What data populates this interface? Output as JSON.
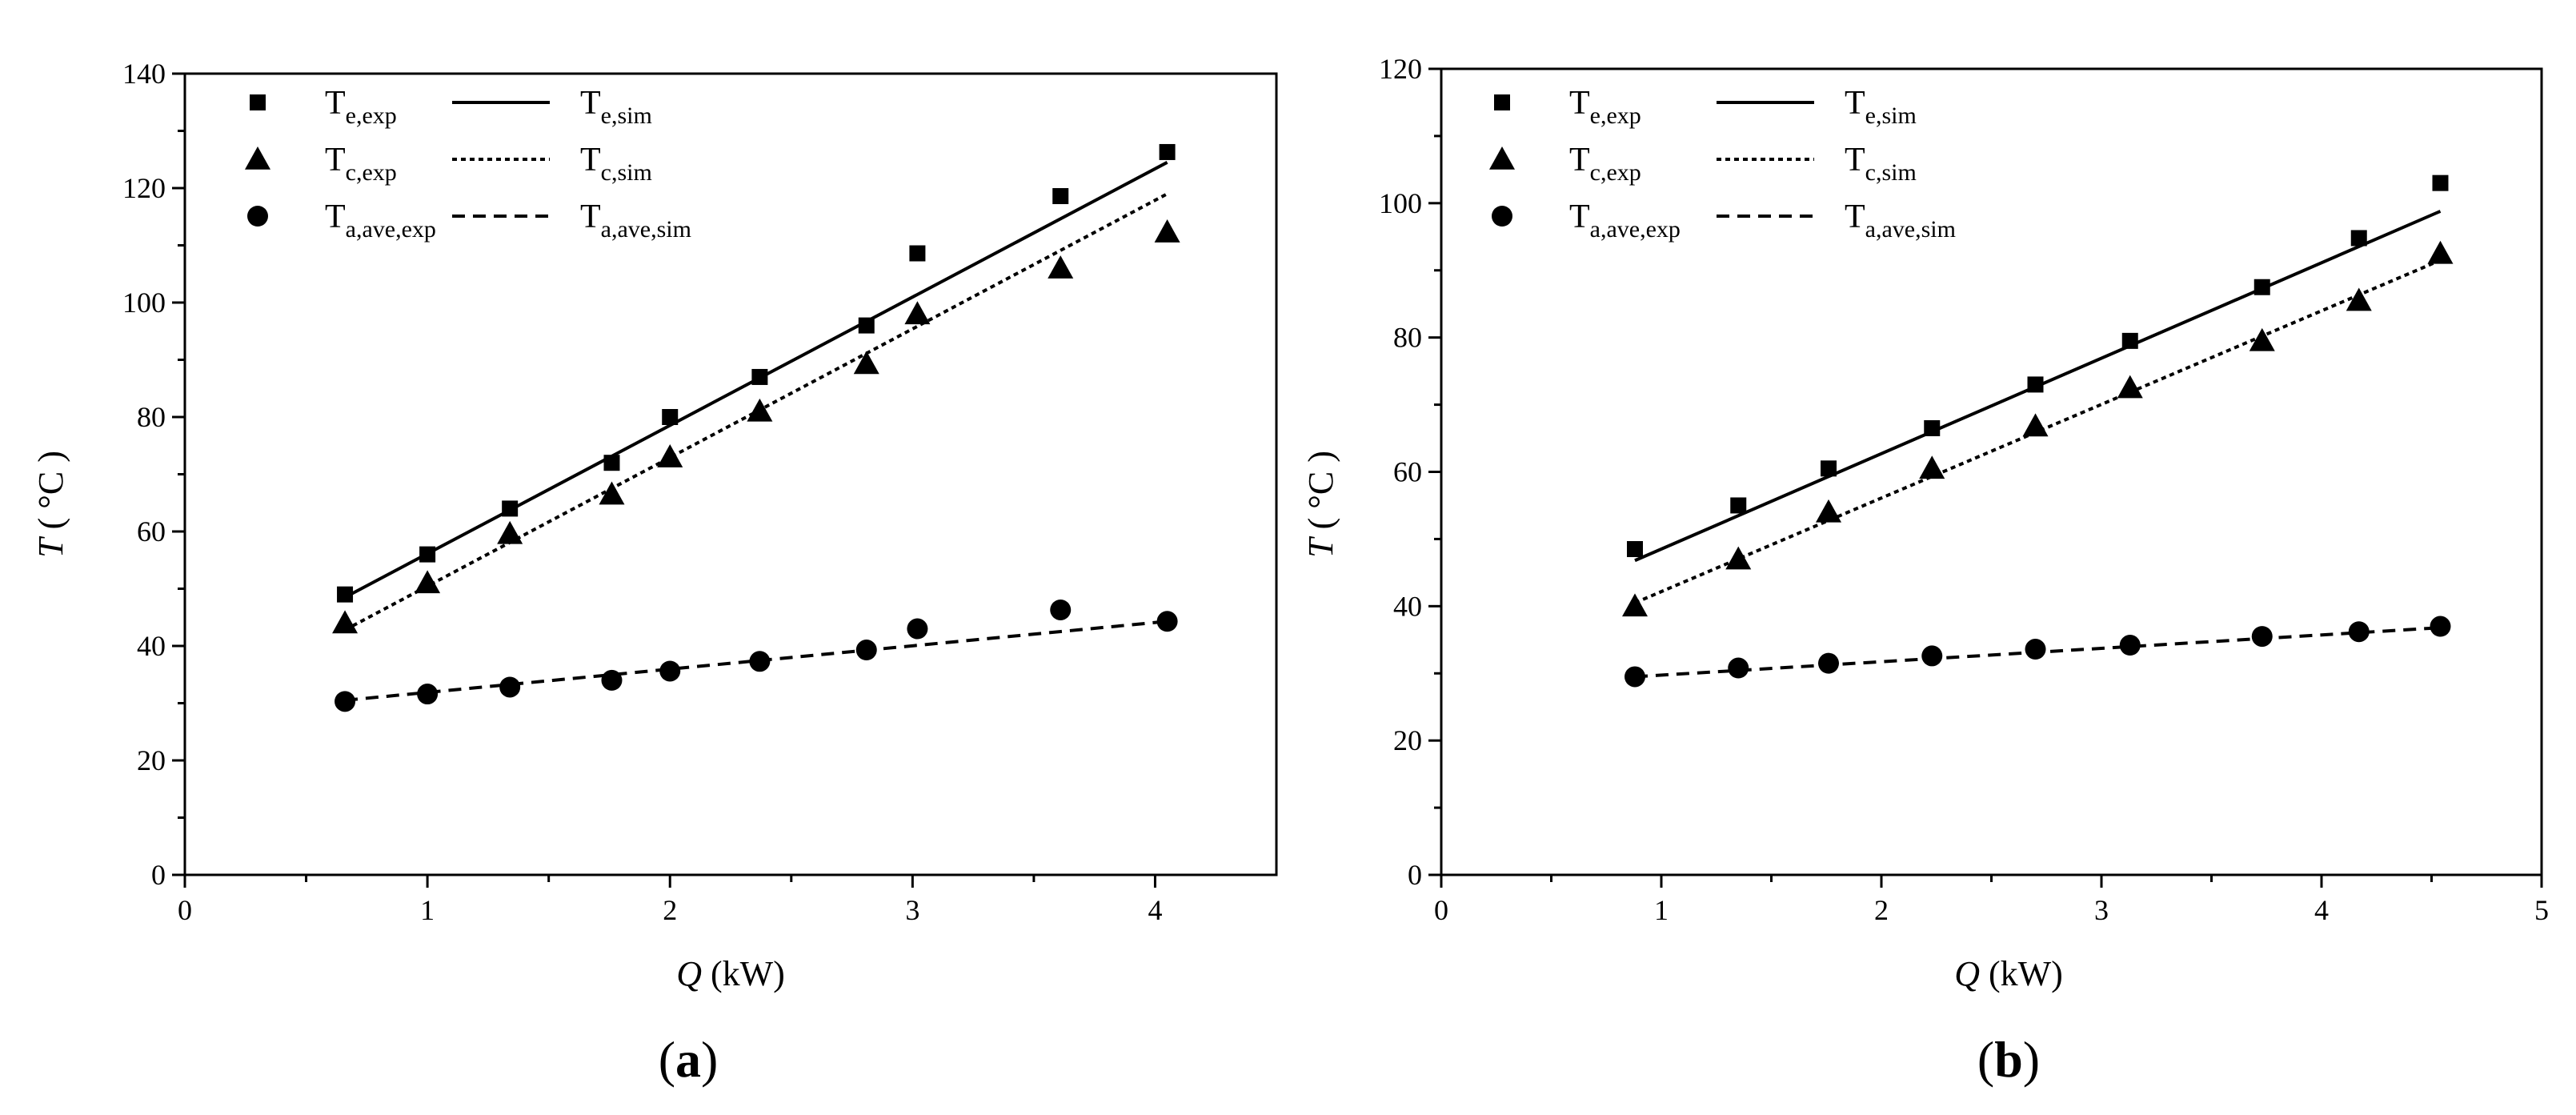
{
  "chart_data": [
    {
      "type": "scatter",
      "panel_label": "a",
      "xlabel": {
        "var": "Q",
        "unit": " (kW)"
      },
      "ylabel": {
        "var": "T",
        "unit": " ( °C )"
      },
      "xlim": [
        0,
        4.5
      ],
      "ylim": [
        0,
        140
      ],
      "xticks": [
        0,
        1,
        2,
        3,
        4
      ],
      "xticks_minor": [
        0.5,
        1.5,
        2.5,
        3.5
      ],
      "yticks": [
        0,
        20,
        40,
        60,
        80,
        100,
        120,
        140
      ],
      "yticks_minor": [
        10,
        30,
        50,
        70,
        90,
        110,
        130
      ],
      "legend": [
        {
          "base": "T",
          "sub": "e,exp",
          "kind": "marker",
          "marker": "square"
        },
        {
          "base": "T",
          "sub": "e,sim",
          "kind": "line",
          "dash": "solid"
        },
        {
          "base": "T",
          "sub": "c,exp",
          "kind": "marker",
          "marker": "triangle"
        },
        {
          "base": "T",
          "sub": "c,sim",
          "kind": "line",
          "dash": "dotted"
        },
        {
          "base": "T",
          "sub": "a,ave,exp",
          "kind": "marker",
          "marker": "circle"
        },
        {
          "base": "T",
          "sub": "a,ave,sim",
          "kind": "line",
          "dash": "dashed"
        }
      ],
      "series": [
        {
          "name": "T_e,exp",
          "marker": "square",
          "x": [
            0.66,
            1.0,
            1.34,
            1.76,
            2.0,
            2.37,
            2.81,
            3.02,
            3.61,
            4.05
          ],
          "y": [
            49.0,
            56.0,
            64.0,
            72.0,
            80.0,
            87.0,
            96.0,
            108.6,
            118.6,
            126.3
          ]
        },
        {
          "name": "T_c,exp",
          "marker": "triangle",
          "x": [
            0.66,
            1.0,
            1.34,
            1.76,
            2.0,
            2.37,
            2.81,
            3.02,
            3.61,
            4.05
          ],
          "y": [
            44.0,
            51.0,
            59.6,
            66.5,
            73.0,
            81.0,
            89.3,
            98.0,
            106.0,
            112.3
          ]
        },
        {
          "name": "T_a,ave,exp",
          "marker": "circle",
          "x": [
            0.66,
            1.0,
            1.34,
            1.76,
            2.0,
            2.37,
            2.81,
            3.02,
            3.61,
            4.05
          ],
          "y": [
            30.3,
            31.6,
            32.8,
            34.0,
            35.6,
            37.3,
            39.3,
            43.0,
            46.3,
            44.3
          ]
        },
        {
          "name": "T_e,sim",
          "line": "solid",
          "x": [
            0.66,
            4.05
          ],
          "y": [
            48.5,
            124.5
          ]
        },
        {
          "name": "T_c,sim",
          "line": "dotted",
          "x": [
            0.66,
            4.05
          ],
          "y": [
            42.8,
            119.0
          ]
        },
        {
          "name": "T_a,ave,sim",
          "line": "dashed",
          "x": [
            0.66,
            4.05
          ],
          "y": [
            30.5,
            44.3
          ]
        }
      ]
    },
    {
      "type": "scatter",
      "panel_label": "b",
      "xlabel": {
        "var": "Q",
        "unit": " (kW)"
      },
      "ylabel": {
        "var": "T",
        "unit": " ( °C )"
      },
      "xlim": [
        0,
        5
      ],
      "ylim": [
        0,
        120
      ],
      "xticks": [
        0,
        1,
        2,
        3,
        4,
        5
      ],
      "xticks_minor": [
        0.5,
        1.5,
        2.5,
        3.5,
        4.5
      ],
      "yticks": [
        0,
        20,
        40,
        60,
        80,
        100,
        120
      ],
      "yticks_minor": [
        10,
        30,
        50,
        70,
        90,
        110
      ],
      "legend": [
        {
          "base": "T",
          "sub": "e,exp",
          "kind": "marker",
          "marker": "square"
        },
        {
          "base": "T",
          "sub": "e,sim",
          "kind": "line",
          "dash": "solid"
        },
        {
          "base": "T",
          "sub": "c,exp",
          "kind": "marker",
          "marker": "triangle"
        },
        {
          "base": "T",
          "sub": "c,sim",
          "kind": "line",
          "dash": "dotted"
        },
        {
          "base": "T",
          "sub": "a,ave,exp",
          "kind": "marker",
          "marker": "circle"
        },
        {
          "base": "T",
          "sub": "a,ave,sim",
          "kind": "line",
          "dash": "dashed"
        }
      ],
      "series": [
        {
          "name": "T_e,exp",
          "marker": "square",
          "x": [
            0.88,
            1.35,
            1.76,
            2.23,
            2.7,
            3.13,
            3.73,
            4.17,
            4.54
          ],
          "y": [
            48.5,
            55.0,
            60.5,
            66.5,
            73.0,
            79.5,
            87.5,
            94.8,
            103.0
          ]
        },
        {
          "name": "T_c,exp",
          "marker": "triangle",
          "x": [
            0.88,
            1.35,
            1.76,
            2.23,
            2.7,
            3.13,
            3.73,
            4.17,
            4.54
          ],
          "y": [
            40.0,
            47.0,
            54.0,
            60.5,
            66.8,
            72.5,
            79.5,
            85.5,
            92.5
          ]
        },
        {
          "name": "T_a,ave,exp",
          "marker": "circle",
          "x": [
            0.88,
            1.35,
            1.76,
            2.23,
            2.7,
            3.13,
            3.73,
            4.17,
            4.54
          ],
          "y": [
            29.5,
            30.8,
            31.5,
            32.6,
            33.6,
            34.2,
            35.5,
            36.2,
            37.0
          ]
        },
        {
          "name": "T_e,sim",
          "line": "solid",
          "x": [
            0.88,
            4.54
          ],
          "y": [
            46.8,
            98.8
          ]
        },
        {
          "name": "T_c,sim",
          "line": "dotted",
          "x": [
            0.88,
            4.54
          ],
          "y": [
            40.5,
            91.5
          ]
        },
        {
          "name": "T_a,ave,sim",
          "line": "dashed",
          "x": [
            0.88,
            4.54
          ],
          "y": [
            29.5,
            36.8
          ]
        }
      ]
    }
  ]
}
